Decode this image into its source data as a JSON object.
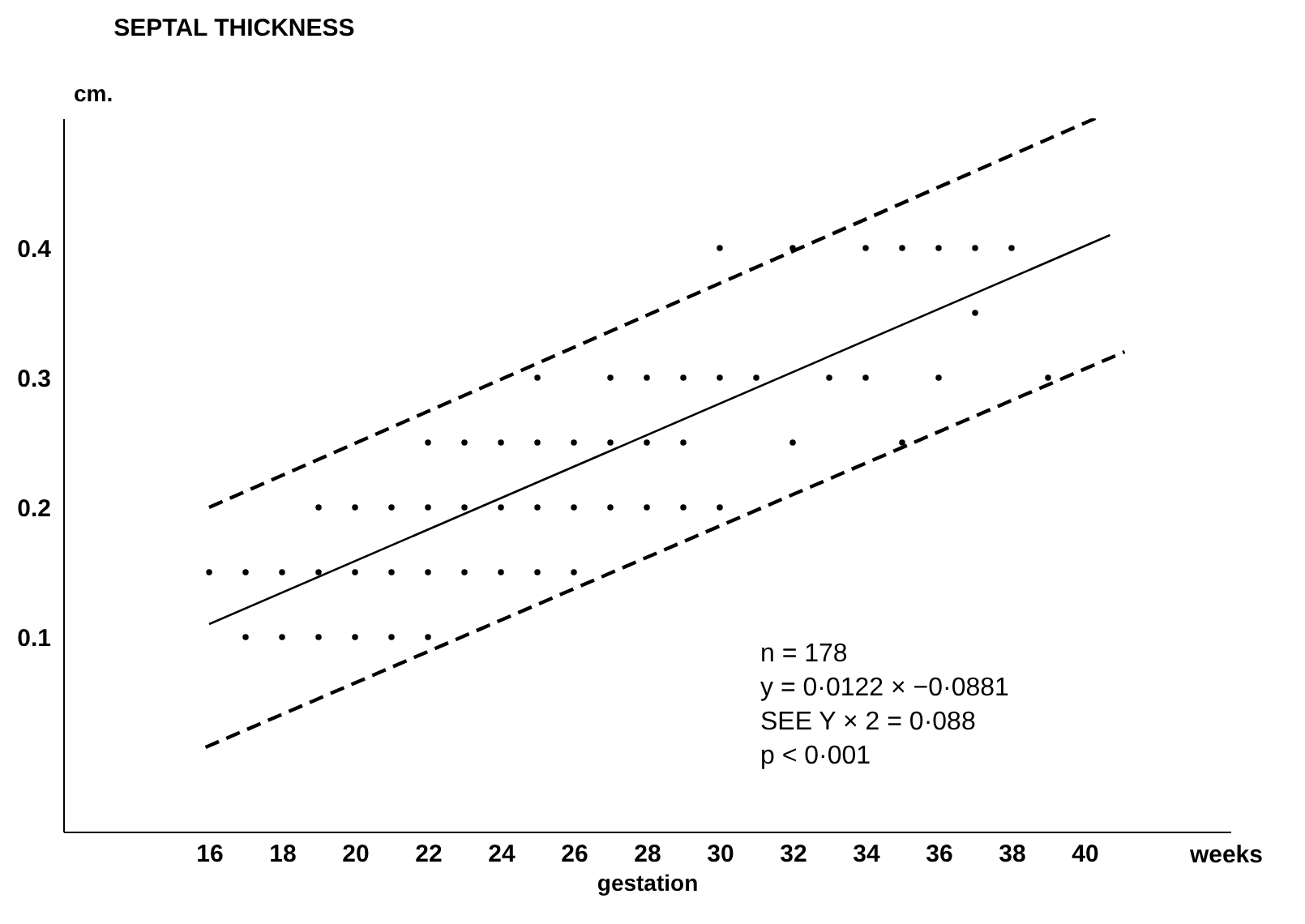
{
  "chart_data": {
    "type": "scatter",
    "title": "SEPTAL THICKNESS",
    "xlabel": "gestation",
    "ylabel": "cm.",
    "annotations": [
      "n = 178",
      "y = 0·0122 × −0·0881",
      "SEE Y × 2 = 0·088",
      "p < 0·001",
      "weeks"
    ],
    "xlim": [
      12,
      44
    ],
    "ylim": [
      -0.05,
      0.5
    ],
    "xticks": [
      16,
      18,
      20,
      22,
      24,
      26,
      28,
      30,
      32,
      34,
      36,
      38,
      40
    ],
    "yticks": [
      0.1,
      0.2,
      0.3,
      0.4
    ],
    "grid": false,
    "series": [
      {
        "color": "#000000",
        "marker": "circle",
        "x": [
          17,
          18,
          19,
          20,
          21,
          22,
          16,
          17,
          18,
          19,
          20,
          21,
          22,
          23,
          24,
          25,
          26,
          19,
          20,
          21,
          22,
          23,
          24,
          25,
          26,
          27,
          28,
          29,
          30,
          22,
          23,
          24,
          25,
          26,
          27,
          28,
          29,
          32,
          35,
          25,
          27,
          28,
          29,
          30,
          31,
          33,
          34,
          36,
          39,
          37,
          30,
          32,
          34,
          35,
          36,
          37,
          38
        ],
        "values": [
          0.1,
          0.1,
          0.1,
          0.1,
          0.1,
          0.1,
          0.15,
          0.15,
          0.15,
          0.15,
          0.15,
          0.15,
          0.15,
          0.15,
          0.15,
          0.15,
          0.15,
          0.2,
          0.2,
          0.2,
          0.2,
          0.2,
          0.2,
          0.2,
          0.2,
          0.2,
          0.2,
          0.2,
          0.2,
          0.25,
          0.25,
          0.25,
          0.25,
          0.25,
          0.25,
          0.25,
          0.25,
          0.25,
          0.25,
          0.3,
          0.3,
          0.3,
          0.3,
          0.3,
          0.3,
          0.3,
          0.3,
          0.3,
          0.3,
          0.35,
          0.4,
          0.4,
          0.4,
          0.4,
          0.4,
          0.4,
          0.4
        ]
      },
      {
        "type": "line",
        "color": "#000000",
        "line_style": "solid",
        "x": [
          16,
          40.7
        ],
        "values": [
          0.11,
          0.41
        ]
      },
      {
        "type": "line",
        "color": "#000000",
        "line_style": "dashed",
        "x": [
          16,
          40.3
        ],
        "values": [
          0.2,
          0.5
        ]
      },
      {
        "type": "line",
        "color": "#000000",
        "line_style": "dashed",
        "x": [
          15.9,
          41.1
        ],
        "values": [
          0.015,
          0.32
        ]
      }
    ]
  }
}
